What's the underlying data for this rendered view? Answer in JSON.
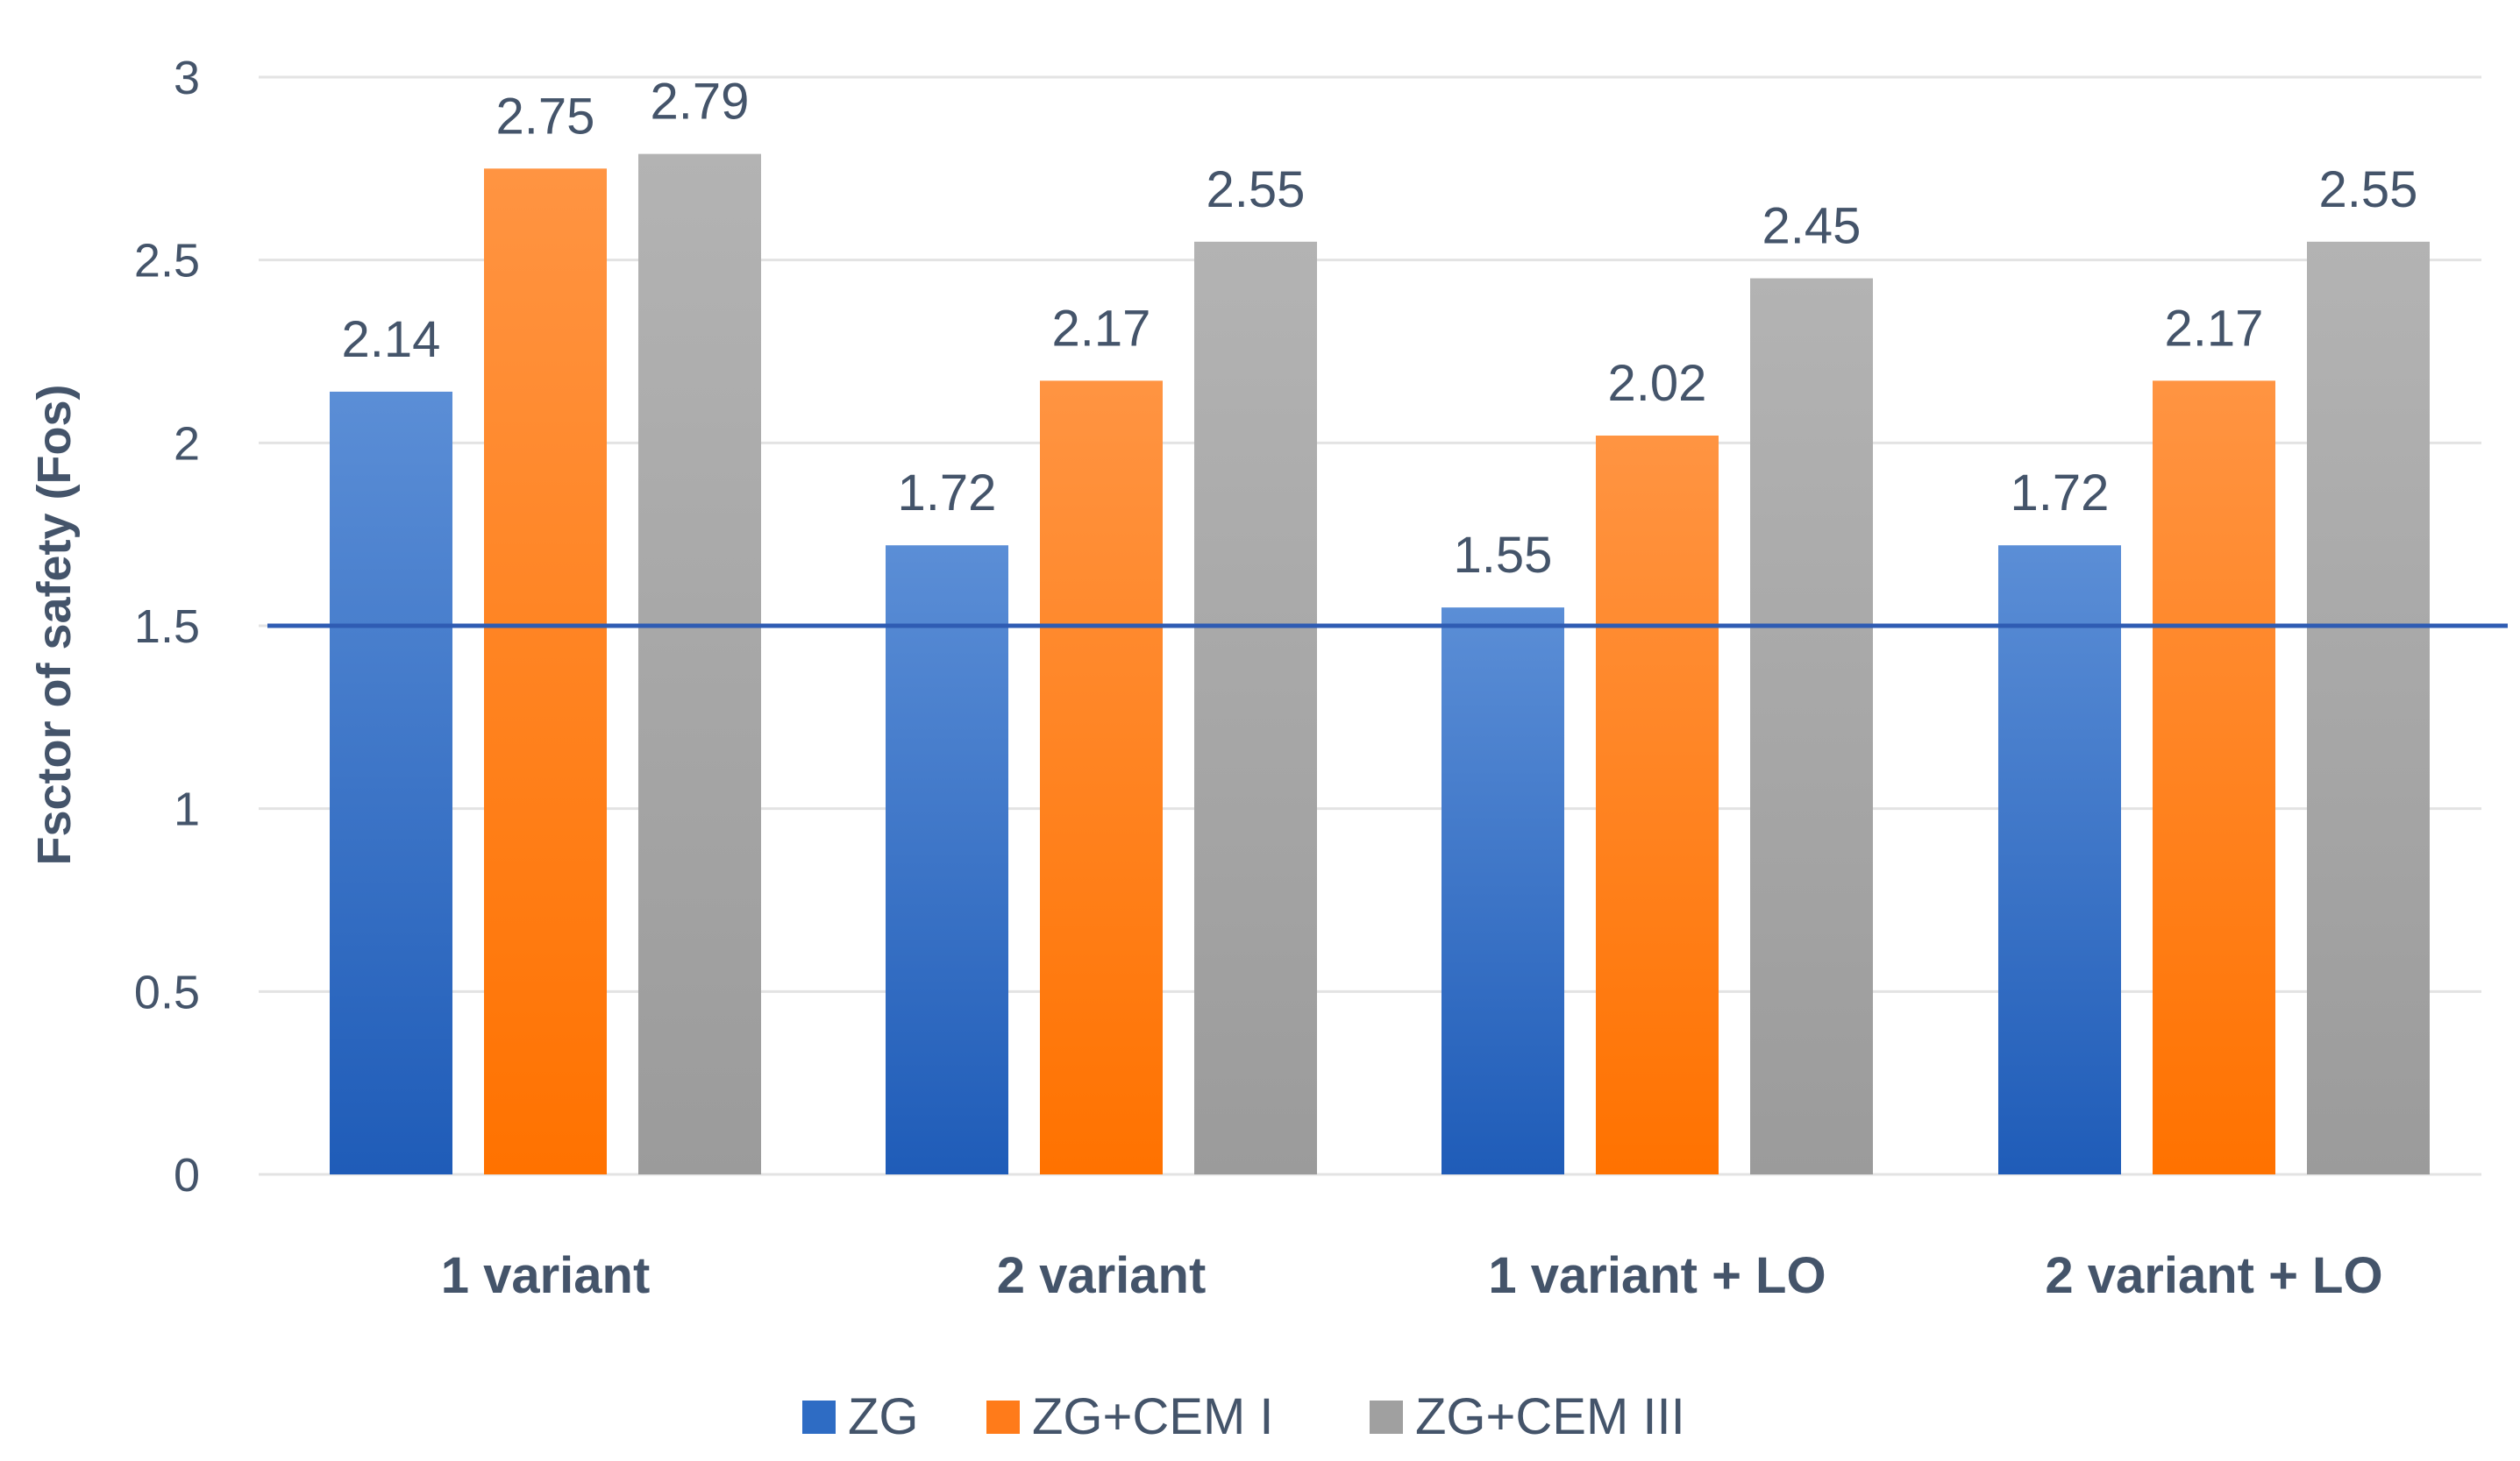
{
  "chart_data": {
    "type": "bar",
    "title": "",
    "xlabel": "",
    "ylabel": "Fsctor of safety (Fos)",
    "ylim": [
      0,
      3
    ],
    "yticks": [
      0,
      0.5,
      1,
      1.5,
      2,
      2.5,
      3
    ],
    "categories": [
      "1 variant",
      "2 variant",
      "1 variant + LO",
      "2 variant +  LO"
    ],
    "series": [
      {
        "name": "ZG",
        "values": [
          2.14,
          1.72,
          1.55,
          1.72
        ],
        "color": "#2e6cc4"
      },
      {
        "name": "ZG+CEM I",
        "values": [
          2.75,
          2.17,
          2.02,
          2.17
        ],
        "color": "#ff7b1a"
      },
      {
        "name": "ZG+CEM III",
        "values": [
          2.79,
          2.55,
          2.45,
          2.55
        ],
        "color": "#a0a0a0"
      }
    ],
    "reference_line": {
      "value": 1.5,
      "color": "#2f5cb3"
    },
    "grid": true,
    "legend_position": "bottom"
  }
}
